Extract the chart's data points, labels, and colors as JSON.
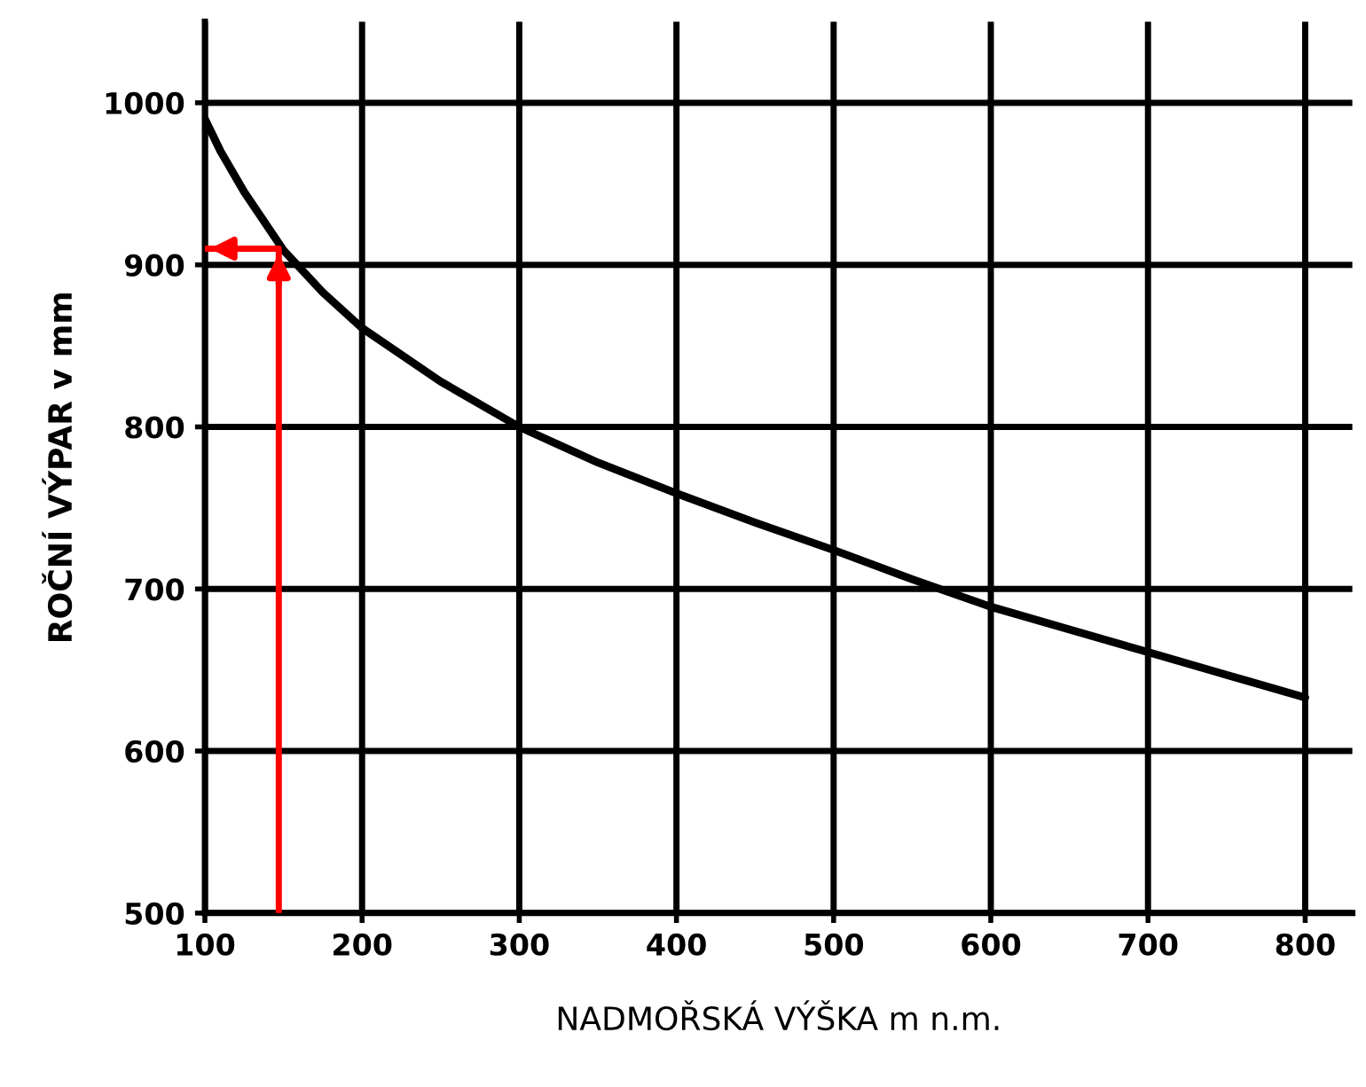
{
  "chart_data": {
    "type": "line",
    "xlabel": "NADMOŘSKÁ VÝŠKA m n.m.",
    "ylabel": "ROČNÍ VÝPAR v mm",
    "series": [
      {
        "color": "#000000",
        "x": [
          100,
          110,
          125,
          150,
          175,
          200,
          250,
          300,
          350,
          400,
          450,
          500,
          550,
          600,
          650,
          700,
          750,
          800
        ],
        "values": [
          990,
          970,
          945,
          909,
          883,
          861,
          828,
          800,
          778,
          759,
          741,
          724,
          706,
          689,
          675,
          661,
          647,
          633
        ]
      },
      {
        "type": "line",
        "color": "#ff0000",
        "x": [
          147,
          147,
          100
        ],
        "values": [
          500,
          910,
          910
        ]
      }
    ],
    "xlim": [
      100,
      830
    ],
    "ylim": [
      500,
      1050
    ],
    "xticks": [
      100,
      200,
      300,
      400,
      500,
      600,
      700,
      800
    ],
    "yticks": [
      500,
      600,
      700,
      800,
      900,
      1000
    ],
    "grid": true,
    "legend": false
  }
}
